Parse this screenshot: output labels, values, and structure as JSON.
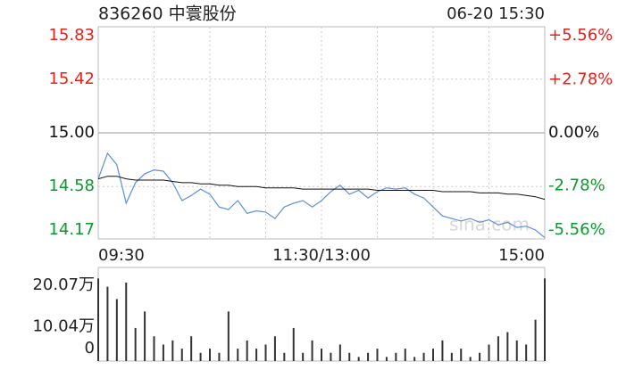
{
  "chart_data": [
    {
      "type": "line",
      "title": "836260 中寰股份",
      "subtitle": "06-20 15:30",
      "annotation": "sina.com",
      "x": [
        0,
        5,
        10,
        15,
        20,
        25,
        30,
        35,
        40,
        45,
        50,
        55,
        60,
        65,
        70,
        75,
        80,
        85,
        90,
        95,
        100,
        105,
        110,
        115,
        120,
        125,
        130,
        135,
        140,
        145,
        150,
        155,
        160,
        165,
        170,
        175,
        180,
        185,
        190,
        195,
        200,
        205,
        210,
        215,
        220,
        225,
        230,
        235,
        240
      ],
      "series": [
        {
          "color": "#5b8fd9",
          "values": [
            14.64,
            14.84,
            14.75,
            14.45,
            14.61,
            14.68,
            14.71,
            14.7,
            14.61,
            14.47,
            14.51,
            14.56,
            14.52,
            14.42,
            14.4,
            14.47,
            14.37,
            14.39,
            14.38,
            14.33,
            14.42,
            14.45,
            14.47,
            14.42,
            14.47,
            14.54,
            14.59,
            14.52,
            14.55,
            14.49,
            14.54,
            14.57,
            14.56,
            14.57,
            14.52,
            14.49,
            14.42,
            14.35,
            14.33,
            14.31,
            14.33,
            14.3,
            14.32,
            14.28,
            14.3,
            14.26,
            14.27,
            14.24,
            14.18
          ]
        },
        {
          "color": "#111111",
          "values": [
            14.64,
            14.66,
            14.66,
            14.64,
            14.63,
            14.63,
            14.63,
            14.63,
            14.62,
            14.61,
            14.61,
            14.6,
            14.6,
            14.59,
            14.59,
            14.58,
            14.58,
            14.58,
            14.57,
            14.57,
            14.57,
            14.57,
            14.56,
            14.56,
            14.56,
            14.56,
            14.56,
            14.56,
            14.56,
            14.56,
            14.55,
            14.55,
            14.55,
            14.55,
            14.55,
            14.55,
            14.55,
            14.54,
            14.54,
            14.54,
            14.54,
            14.53,
            14.53,
            14.53,
            14.52,
            14.52,
            14.51,
            14.5,
            14.48
          ]
        }
      ],
      "xlim": [
        0,
        240
      ],
      "xticks": [
        {
          "value": 0,
          "label": "09:30"
        },
        {
          "value": 120,
          "label": "11:30/13:00"
        },
        {
          "value": 240,
          "label": "15:00"
        }
      ],
      "ylim": [
        14.17,
        15.83
      ],
      "yticks": [
        {
          "value": 15.83,
          "label": "15.83"
        },
        {
          "value": 15.42,
          "label": "15.42"
        },
        {
          "value": 15.0,
          "label": "15.00"
        },
        {
          "value": 14.58,
          "label": "14.58"
        },
        {
          "value": 14.17,
          "label": "14.17"
        }
      ],
      "y2lim": [
        -5.56,
        5.56
      ],
      "y2ticks": [
        {
          "value": 5.56,
          "label": "+5.56%"
        },
        {
          "value": 2.78,
          "label": "+2.78%"
        },
        {
          "value": 0,
          "label": "0.00%"
        },
        {
          "value": -2.78,
          "label": "-2.78%"
        },
        {
          "value": -5.56,
          "label": "-5.56%"
        }
      ],
      "up_color": "#e8201a",
      "down_color": "#0a9a2a",
      "grid": true
    },
    {
      "type": "bar",
      "x": [
        0,
        5,
        10,
        15,
        20,
        25,
        30,
        35,
        40,
        45,
        50,
        55,
        60,
        65,
        70,
        75,
        80,
        85,
        90,
        95,
        100,
        105,
        110,
        115,
        120,
        125,
        130,
        135,
        140,
        145,
        150,
        155,
        160,
        165,
        170,
        175,
        180,
        185,
        190,
        195,
        200,
        205,
        210,
        215,
        220,
        225,
        230,
        235,
        240
      ],
      "values": [
        20,
        18,
        15,
        19,
        8,
        12,
        6,
        4,
        5,
        3,
        6,
        2,
        3,
        2,
        12,
        3,
        5,
        3,
        4,
        6,
        2,
        8,
        2,
        5,
        3,
        2,
        4,
        2,
        1,
        2,
        3,
        1,
        2,
        3,
        1,
        2,
        3,
        5,
        2,
        3,
        1,
        2,
        4,
        6,
        7,
        5,
        4,
        10,
        20
      ],
      "color": "#333333",
      "xlim": [
        0,
        240
      ],
      "ylim": [
        0,
        20.07
      ],
      "yticks": [
        {
          "value": 20.07,
          "label": "20.07万"
        },
        {
          "value": 10.04,
          "label": "10.04万"
        },
        0
      ]
    }
  ]
}
